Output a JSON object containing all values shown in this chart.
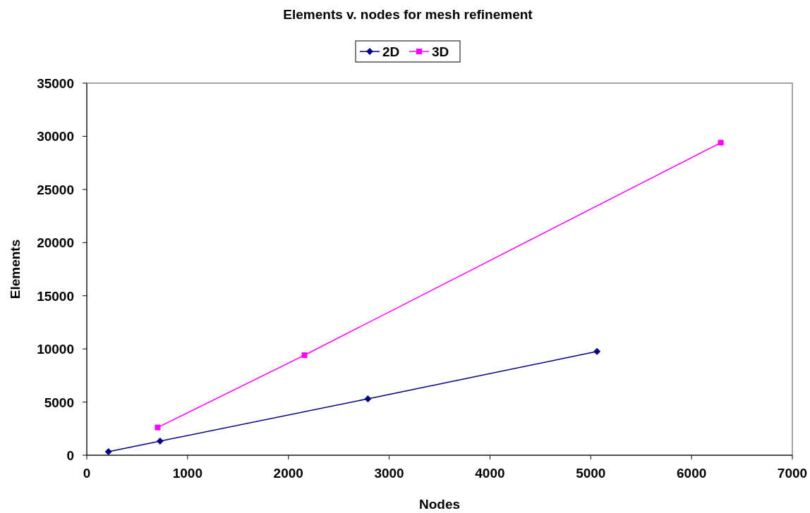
{
  "chart_data": {
    "type": "line",
    "title": "Elements v. nodes for mesh refinement",
    "xlabel": "Nodes",
    "ylabel": "Elements",
    "xlim": [
      0,
      7000
    ],
    "xticks": [
      0,
      1000,
      2000,
      3000,
      4000,
      5000,
      6000,
      7000
    ],
    "ylim": [
      0,
      35000
    ],
    "yticks": [
      0,
      5000,
      10000,
      15000,
      20000,
      25000,
      30000,
      35000
    ],
    "grid": false,
    "legend": "top",
    "series": [
      {
        "name": "2D",
        "color": "#000080",
        "marker": "diamond",
        "x": [
          215,
          727,
          2789,
          5062
        ],
        "values": [
          330,
          1330,
          5310,
          9760
        ]
      },
      {
        "name": "3D",
        "color": "#ff00ff",
        "marker": "square",
        "x": [
          703,
          2160,
          6290
        ],
        "values": [
          2610,
          9410,
          29400
        ]
      }
    ]
  }
}
